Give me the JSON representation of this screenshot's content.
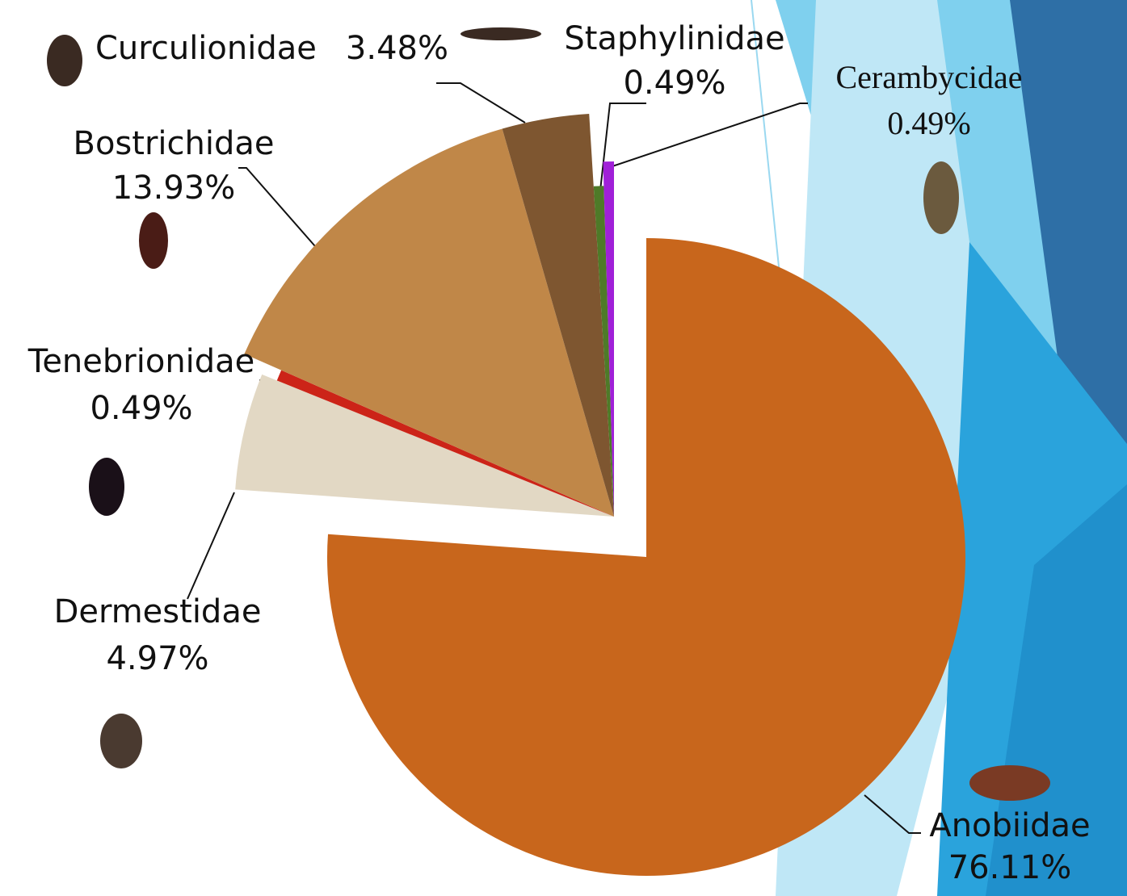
{
  "chart_data": {
    "type": "pie",
    "categories": [
      "Anobiidae",
      "Dermestidae",
      "Tenebrionidae",
      "Bostrichidae",
      "Curculionidae",
      "Staphylinidae",
      "Cerambycidae"
    ],
    "values": [
      76.11,
      4.97,
      0.49,
      13.93,
      3.48,
      0.49,
      0.49
    ],
    "value_labels": [
      "76.11%",
      "4.97%",
      "0.49%",
      "13.93%",
      "3.48%",
      "0.49%",
      "0.49%"
    ],
    "colors": [
      "#c8661c",
      "#e2d8c4",
      "#cc2418",
      "#c08748",
      "#7e5630",
      "#4e7a28",
      "#a020d8"
    ]
  }
}
